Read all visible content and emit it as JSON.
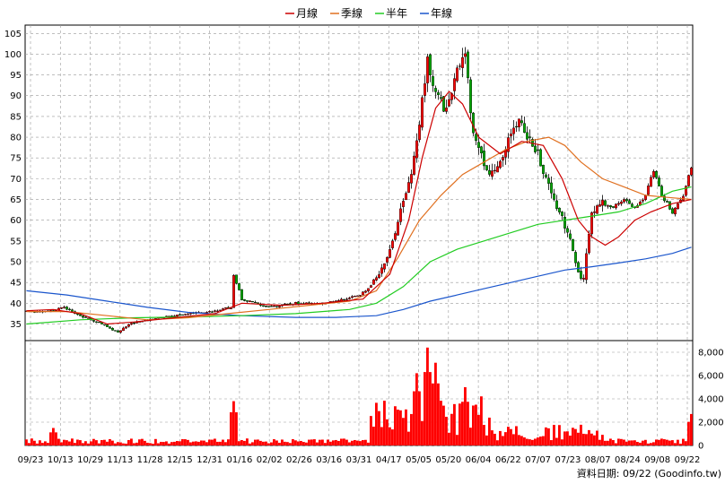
{
  "chart_data": {
    "type": "candlestick",
    "legend": [
      {
        "name": "月線",
        "color": "#cc0000"
      },
      {
        "name": "季線",
        "color": "#e07020"
      },
      {
        "name": "半年",
        "color": "#22cc22"
      },
      {
        "name": "年線",
        "color": "#1a55cc"
      }
    ],
    "x_tick_labels": [
      "09/23",
      "10/13",
      "10/29",
      "11/13",
      "11/28",
      "12/15",
      "12/31",
      "01/16",
      "02/02",
      "02/26",
      "03/16",
      "03/31",
      "04/17",
      "05/05",
      "05/20",
      "06/04",
      "06/22",
      "07/07",
      "07/23",
      "08/07",
      "08/24",
      "09/08",
      "09/22"
    ],
    "price_axis": {
      "ticks": [
        35,
        40,
        45,
        50,
        55,
        60,
        65,
        70,
        75,
        80,
        85,
        90,
        95,
        100,
        105
      ],
      "ylim": [
        31,
        107
      ]
    },
    "volume_axis": {
      "tick_labels": [
        "0",
        "2,000",
        "4,000",
        "6,000",
        "8,000"
      ],
      "ticks": [
        0,
        2000,
        4000,
        6000,
        8000
      ],
      "ylim": [
        0,
        9000
      ]
    },
    "price_anchors": [
      {
        "x": 0,
        "v": 38
      },
      {
        "x": 8,
        "v": 38
      },
      {
        "x": 14,
        "v": 39
      },
      {
        "x": 20,
        "v": 37
      },
      {
        "x": 28,
        "v": 35
      },
      {
        "x": 34,
        "v": 33
      },
      {
        "x": 38,
        "v": 35
      },
      {
        "x": 45,
        "v": 36
      },
      {
        "x": 55,
        "v": 37
      },
      {
        "x": 68,
        "v": 38
      },
      {
        "x": 76,
        "v": 39
      },
      {
        "x": 77,
        "v": 47
      },
      {
        "x": 80,
        "v": 41
      },
      {
        "x": 90,
        "v": 39
      },
      {
        "x": 100,
        "v": 40
      },
      {
        "x": 110,
        "v": 40
      },
      {
        "x": 118,
        "v": 41
      },
      {
        "x": 124,
        "v": 42
      },
      {
        "x": 128,
        "v": 44
      },
      {
        "x": 132,
        "v": 48
      },
      {
        "x": 136,
        "v": 55
      },
      {
        "x": 139,
        "v": 62
      },
      {
        "x": 143,
        "v": 71
      },
      {
        "x": 146,
        "v": 84
      },
      {
        "x": 149,
        "v": 98
      },
      {
        "x": 152,
        "v": 91
      },
      {
        "x": 156,
        "v": 86
      },
      {
        "x": 160,
        "v": 97
      },
      {
        "x": 163,
        "v": 100
      },
      {
        "x": 166,
        "v": 80
      },
      {
        "x": 169,
        "v": 76
      },
      {
        "x": 172,
        "v": 70
      },
      {
        "x": 176,
        "v": 75
      },
      {
        "x": 180,
        "v": 80
      },
      {
        "x": 183,
        "v": 85
      },
      {
        "x": 186,
        "v": 80
      },
      {
        "x": 190,
        "v": 76
      },
      {
        "x": 194,
        "v": 68
      },
      {
        "x": 198,
        "v": 62
      },
      {
        "x": 202,
        "v": 55
      },
      {
        "x": 205,
        "v": 47
      },
      {
        "x": 207,
        "v": 46
      },
      {
        "x": 210,
        "v": 62
      },
      {
        "x": 214,
        "v": 64
      },
      {
        "x": 218,
        "v": 63
      },
      {
        "x": 222,
        "v": 65
      },
      {
        "x": 226,
        "v": 63
      },
      {
        "x": 230,
        "v": 66
      },
      {
        "x": 233,
        "v": 72
      },
      {
        "x": 236,
        "v": 66
      },
      {
        "x": 240,
        "v": 62
      },
      {
        "x": 244,
        "v": 66
      },
      {
        "x": 247,
        "v": 73
      }
    ],
    "spikes": [
      {
        "x": 10,
        "vol": 1500
      },
      {
        "x": 77,
        "vol": 3800
      },
      {
        "x": 145,
        "vol": 6200
      },
      {
        "x": 149,
        "vol": 8400
      },
      {
        "x": 152,
        "vol": 7100
      },
      {
        "x": 163,
        "vol": 5000
      },
      {
        "x": 167,
        "vol": 3500
      },
      {
        "x": 247,
        "vol": 2700
      }
    ],
    "ma_month": [
      [
        0,
        38.2
      ],
      [
        10,
        38.5
      ],
      [
        20,
        37.5
      ],
      [
        30,
        35
      ],
      [
        40,
        35.5
      ],
      [
        55,
        36.5
      ],
      [
        70,
        37.5
      ],
      [
        80,
        40
      ],
      [
        95,
        39.5
      ],
      [
        110,
        40
      ],
      [
        125,
        41
      ],
      [
        135,
        47
      ],
      [
        142,
        60
      ],
      [
        147,
        75
      ],
      [
        152,
        87
      ],
      [
        157,
        91
      ],
      [
        162,
        88
      ],
      [
        168,
        80
      ],
      [
        176,
        76
      ],
      [
        184,
        79
      ],
      [
        192,
        78
      ],
      [
        199,
        70
      ],
      [
        205,
        60
      ],
      [
        210,
        56
      ],
      [
        215,
        54
      ],
      [
        220,
        56
      ],
      [
        226,
        60
      ],
      [
        232,
        62
      ],
      [
        240,
        64
      ],
      [
        247,
        65
      ]
    ],
    "ma_season": [
      [
        0,
        38
      ],
      [
        15,
        38
      ],
      [
        30,
        37
      ],
      [
        45,
        36
      ],
      [
        60,
        36.5
      ],
      [
        75,
        37.5
      ],
      [
        90,
        38.5
      ],
      [
        105,
        39.5
      ],
      [
        120,
        40.5
      ],
      [
        130,
        43
      ],
      [
        138,
        51
      ],
      [
        146,
        60
      ],
      [
        154,
        66
      ],
      [
        162,
        71
      ],
      [
        170,
        74
      ],
      [
        178,
        77
      ],
      [
        186,
        79
      ],
      [
        194,
        80
      ],
      [
        200,
        78
      ],
      [
        206,
        74
      ],
      [
        214,
        70
      ],
      [
        222,
        68
      ],
      [
        230,
        66
      ],
      [
        238,
        65.5
      ],
      [
        247,
        65
      ]
    ],
    "ma_half": [
      [
        0,
        35
      ],
      [
        20,
        36
      ],
      [
        40,
        36.5
      ],
      [
        60,
        36.7
      ],
      [
        80,
        37
      ],
      [
        100,
        37.5
      ],
      [
        120,
        38.5
      ],
      [
        130,
        40
      ],
      [
        140,
        44
      ],
      [
        150,
        50
      ],
      [
        160,
        53
      ],
      [
        170,
        55
      ],
      [
        180,
        57
      ],
      [
        190,
        59
      ],
      [
        200,
        60
      ],
      [
        210,
        61
      ],
      [
        220,
        62
      ],
      [
        230,
        64
      ],
      [
        240,
        67
      ],
      [
        247,
        68
      ]
    ],
    "ma_year": [
      [
        0,
        43
      ],
      [
        15,
        42
      ],
      [
        30,
        40.5
      ],
      [
        45,
        39
      ],
      [
        60,
        37.8
      ],
      [
        80,
        37
      ],
      [
        100,
        36.6
      ],
      [
        115,
        36.6
      ],
      [
        130,
        37
      ],
      [
        140,
        38.5
      ],
      [
        150,
        40.5
      ],
      [
        160,
        42
      ],
      [
        170,
        43.5
      ],
      [
        180,
        45
      ],
      [
        190,
        46.5
      ],
      [
        200,
        48
      ],
      [
        210,
        48.8
      ],
      [
        220,
        49.7
      ],
      [
        230,
        50.7
      ],
      [
        240,
        52
      ],
      [
        247,
        53.5
      ]
    ]
  },
  "credit": "資料日期: 09/22  (Goodinfo.tw)"
}
